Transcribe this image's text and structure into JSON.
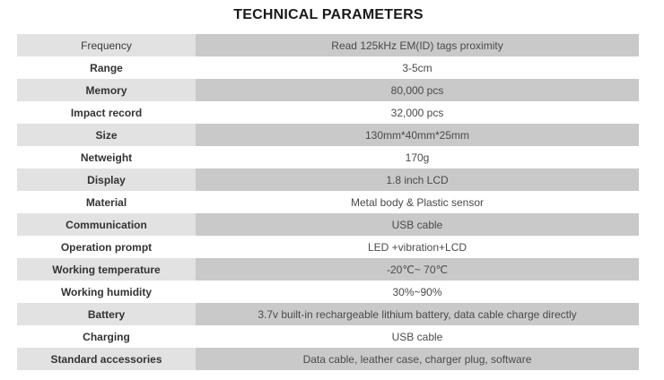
{
  "title": "TECHNICAL PARAMETERS",
  "colors": {
    "label_shade": "#e2e2e2",
    "value_shade": "#c9c9c9",
    "plain": "#ffffff",
    "text": "#3a3a3a"
  },
  "rows": [
    {
      "label": "Frequency",
      "value": "Read 125kHz EM(ID) tags proximity",
      "shaded": true,
      "bold": false
    },
    {
      "label": "Range",
      "value": "3-5cm",
      "shaded": false,
      "bold": true
    },
    {
      "label": "Memory",
      "value": "80,000 pcs",
      "shaded": true,
      "bold": true
    },
    {
      "label": "Impact record",
      "value": "32,000 pcs",
      "shaded": false,
      "bold": true
    },
    {
      "label": "Size",
      "value": "130mm*40mm*25mm",
      "shaded": true,
      "bold": true
    },
    {
      "label": "Netweight",
      "value": "170g",
      "shaded": false,
      "bold": true
    },
    {
      "label": "Display",
      "value": "1.8 inch LCD",
      "shaded": true,
      "bold": true
    },
    {
      "label": "Material",
      "value": "Metal body & Plastic sensor",
      "shaded": false,
      "bold": true
    },
    {
      "label": "Communication",
      "value": "USB cable",
      "shaded": true,
      "bold": true
    },
    {
      "label": "Operation prompt",
      "value": "LED +vibration+LCD",
      "shaded": false,
      "bold": true
    },
    {
      "label": "Working temperature",
      "value": "-20℃~ 70℃",
      "shaded": true,
      "bold": true
    },
    {
      "label": "Working humidity",
      "value": "30%~90%",
      "shaded": false,
      "bold": true
    },
    {
      "label": "Battery",
      "value": "3.7v built-in rechargeable lithium battery, data cable charge directly",
      "shaded": true,
      "bold": true
    },
    {
      "label": "Charging",
      "value": "USB cable",
      "shaded": false,
      "bold": true
    },
    {
      "label": "Standard accessories",
      "value": "Data cable, leather case, charger plug, software",
      "shaded": true,
      "bold": true
    }
  ]
}
